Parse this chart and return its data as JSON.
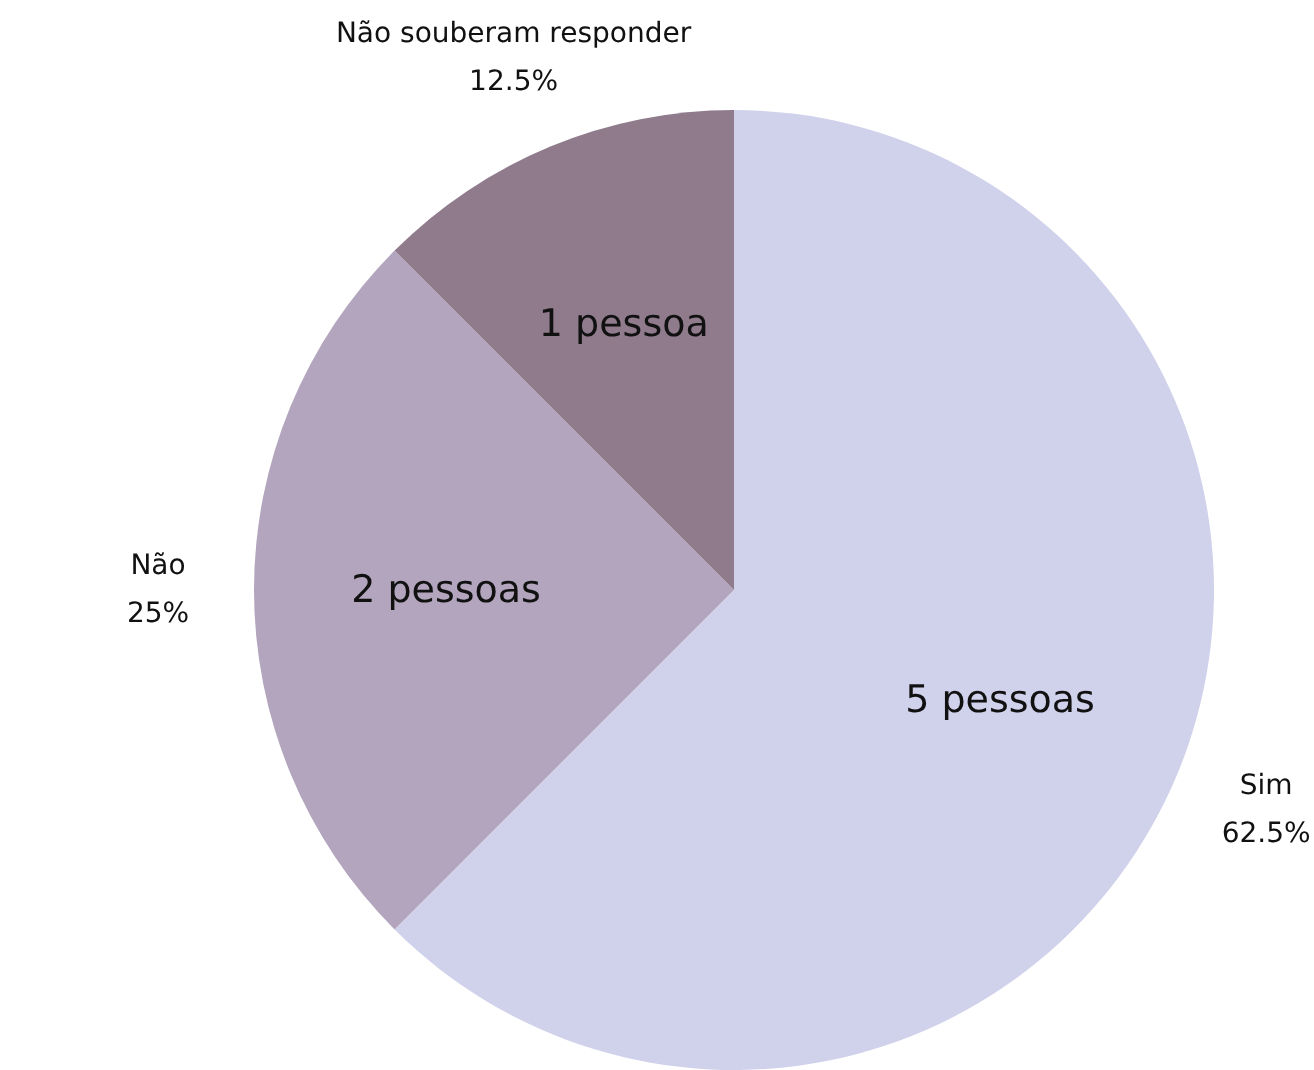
{
  "chart_data": {
    "type": "pie",
    "categories": [
      "Sim",
      "Não",
      "Não souberam responder"
    ],
    "values": [
      5,
      2,
      1
    ],
    "colors": [
      "#d0d1eb",
      "#b2a5bd",
      "#8f7b8c"
    ],
    "value_labels": [
      "5 pessoas",
      "2 pessoas",
      "1 pessoa"
    ],
    "annotations": [
      "62.5%",
      "25%",
      "12.5%"
    ]
  }
}
